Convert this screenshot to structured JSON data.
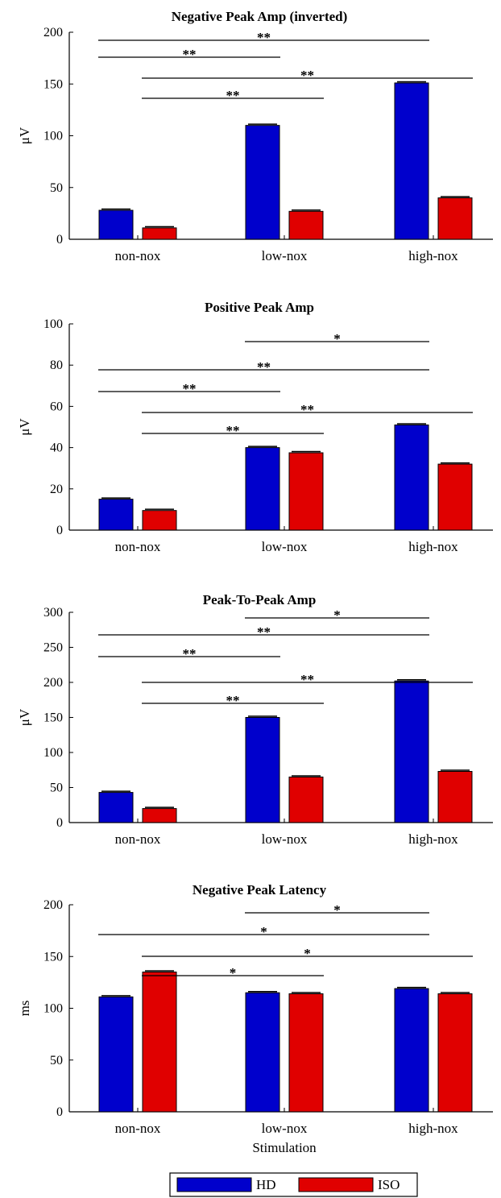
{
  "chart_data": [
    {
      "type": "bar",
      "title": "Negative Peak Amp (inverted)",
      "ylabel": "μV",
      "xlabel": "",
      "ylim": [
        0,
        200
      ],
      "yticks": [
        0,
        50,
        100,
        150,
        200
      ],
      "categories": [
        "non-nox",
        "low-nox",
        "high-nox"
      ],
      "series": [
        {
          "name": "HD",
          "color": "#0000cc",
          "values": [
            28,
            110,
            151
          ]
        },
        {
          "name": "ISO",
          "color": "#e00000",
          "values": [
            11,
            27,
            40
          ]
        }
      ],
      "significance": [
        {
          "label": "**",
          "from": "non-nox HD",
          "to": "high-nox HD"
        },
        {
          "label": "**",
          "from": "non-nox HD",
          "to": "low-nox HD"
        },
        {
          "label": "**",
          "from": "non-nox ISO",
          "to": "high-nox ISO"
        },
        {
          "label": "**",
          "from": "non-nox ISO",
          "to": "low-nox ISO"
        }
      ]
    },
    {
      "type": "bar",
      "title": "Positive Peak Amp",
      "ylabel": "μV",
      "xlabel": "",
      "ylim": [
        0,
        100
      ],
      "yticks": [
        0,
        20,
        40,
        60,
        80,
        100
      ],
      "categories": [
        "non-nox",
        "low-nox",
        "high-nox"
      ],
      "series": [
        {
          "name": "HD",
          "color": "#0000cc",
          "values": [
            15,
            40,
            51
          ]
        },
        {
          "name": "ISO",
          "color": "#e00000",
          "values": [
            9.5,
            37.5,
            32
          ]
        }
      ],
      "significance": [
        {
          "label": "*",
          "from": "low-nox HD",
          "to": "high-nox HD"
        },
        {
          "label": "**",
          "from": "non-nox HD",
          "to": "high-nox HD"
        },
        {
          "label": "**",
          "from": "non-nox HD",
          "to": "low-nox HD"
        },
        {
          "label": "**",
          "from": "non-nox ISO",
          "to": "high-nox ISO"
        },
        {
          "label": "**",
          "from": "non-nox ISO",
          "to": "low-nox ISO"
        }
      ]
    },
    {
      "type": "bar",
      "title": "Peak-To-Peak Amp",
      "ylabel": "μV",
      "xlabel": "",
      "ylim": [
        0,
        300
      ],
      "yticks": [
        0,
        50,
        100,
        150,
        200,
        250,
        300
      ],
      "categories": [
        "non-nox",
        "low-nox",
        "high-nox"
      ],
      "series": [
        {
          "name": "HD",
          "color": "#0000cc",
          "values": [
            43,
            150,
            202
          ]
        },
        {
          "name": "ISO",
          "color": "#e00000",
          "values": [
            20,
            65,
            73
          ]
        }
      ],
      "significance": [
        {
          "label": "*",
          "from": "low-nox HD",
          "to": "high-nox HD"
        },
        {
          "label": "**",
          "from": "non-nox HD",
          "to": "high-nox HD"
        },
        {
          "label": "**",
          "from": "non-nox HD",
          "to": "low-nox HD"
        },
        {
          "label": "**",
          "from": "non-nox ISO",
          "to": "high-nox ISO"
        },
        {
          "label": "**",
          "from": "non-nox ISO",
          "to": "low-nox ISO"
        }
      ]
    },
    {
      "type": "bar",
      "title": "Negative Peak Latency",
      "ylabel": "ms",
      "xlabel": "Stimulation",
      "ylim": [
        0,
        200
      ],
      "yticks": [
        0,
        50,
        100,
        150,
        200
      ],
      "categories": [
        "non-nox",
        "low-nox",
        "high-nox"
      ],
      "series": [
        {
          "name": "HD",
          "color": "#0000cc",
          "values": [
            111,
            115,
            119
          ]
        },
        {
          "name": "ISO",
          "color": "#e00000",
          "values": [
            135,
            114,
            114
          ]
        }
      ],
      "significance": [
        {
          "label": "*",
          "from": "low-nox HD",
          "to": "high-nox HD"
        },
        {
          "label": "*",
          "from": "non-nox HD",
          "to": "high-nox HD"
        },
        {
          "label": "*",
          "from": "non-nox ISO",
          "to": "high-nox ISO"
        },
        {
          "label": "*",
          "from": "non-nox ISO",
          "to": "low-nox ISO"
        }
      ]
    }
  ],
  "legend": {
    "placement": "bottom-center",
    "entries": [
      {
        "label": "HD",
        "color": "#0000cc"
      },
      {
        "label": "ISO",
        "color": "#e00000"
      }
    ]
  }
}
